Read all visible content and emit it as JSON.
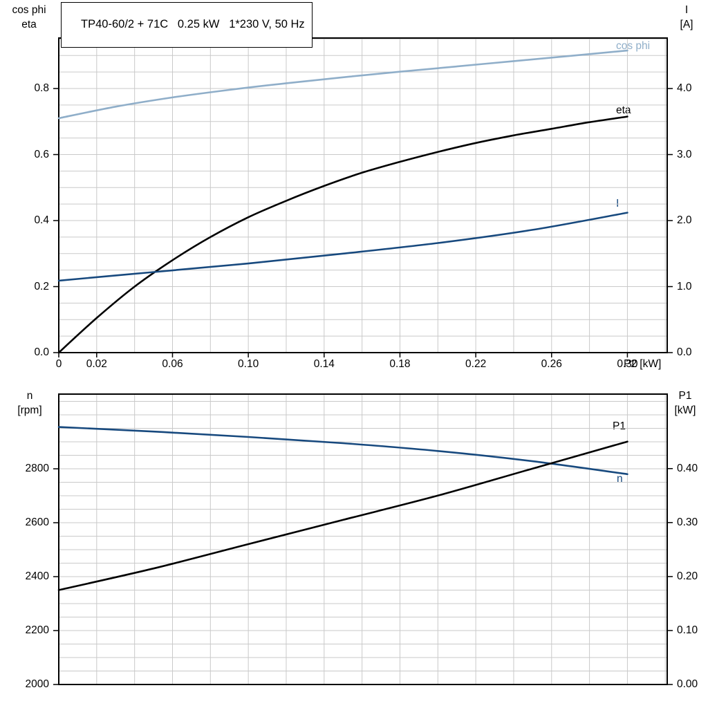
{
  "colors": {
    "light_blue": "#8FAEC9",
    "dark_blue": "#17497E",
    "black": "#000000",
    "grid": "#C9C9C9",
    "frame": "#000000"
  },
  "chart_data": [
    {
      "type": "line",
      "title": "TP40-60/2 + 71C   0.25 kW   1*230 V, 50 Hz",
      "xlabel": "P2 [kW]",
      "xlim": [
        0,
        0.321
      ],
      "x_grid_step": 0.02,
      "x_ticks": [
        {
          "v": 0,
          "label": "0"
        },
        {
          "v": 0.02,
          "label": "0.02"
        },
        {
          "v": 0.06,
          "label": "0.06"
        },
        {
          "v": 0.1,
          "label": "0.10"
        },
        {
          "v": 0.14,
          "label": "0.14"
        },
        {
          "v": 0.18,
          "label": "0.18"
        },
        {
          "v": 0.22,
          "label": "0.22"
        },
        {
          "v": 0.26,
          "label": "0.26"
        },
        {
          "v": 0.3,
          "label": "0.30"
        }
      ],
      "left_axis": {
        "title": [
          "cos phi",
          "eta"
        ],
        "lim": [
          0,
          0.953
        ],
        "grid_step": 0.05,
        "ticks": [
          {
            "v": 0.0,
            "label": "0.0"
          },
          {
            "v": 0.2,
            "label": "0.2"
          },
          {
            "v": 0.4,
            "label": "0.4"
          },
          {
            "v": 0.6,
            "label": "0.6"
          },
          {
            "v": 0.8,
            "label": "0.8"
          }
        ]
      },
      "right_axis": {
        "title": [
          "I",
          "[A]"
        ],
        "lim": [
          0,
          4.765
        ],
        "ticks": [
          {
            "v": 0.0,
            "label": "0.0"
          },
          {
            "v": 1.0,
            "label": "1.0"
          },
          {
            "v": 2.0,
            "label": "2.0"
          },
          {
            "v": 3.0,
            "label": "3.0"
          },
          {
            "v": 4.0,
            "label": "4.0"
          }
        ]
      },
      "series": [
        {
          "name": "cos phi",
          "axis": "left",
          "color": "light_blue",
          "x": [
            0,
            0.03,
            0.06,
            0.09,
            0.12,
            0.15,
            0.18,
            0.21,
            0.24,
            0.27,
            0.3
          ],
          "y": [
            0.71,
            0.745,
            0.773,
            0.796,
            0.816,
            0.834,
            0.851,
            0.867,
            0.883,
            0.899,
            0.915
          ]
        },
        {
          "name": "eta",
          "axis": "left",
          "color": "black",
          "x": [
            0,
            0.02,
            0.04,
            0.06,
            0.08,
            0.1,
            0.12,
            0.14,
            0.16,
            0.18,
            0.2,
            0.22,
            0.24,
            0.26,
            0.28,
            0.3
          ],
          "y": [
            0.0,
            0.105,
            0.2,
            0.28,
            0.35,
            0.41,
            0.46,
            0.505,
            0.545,
            0.578,
            0.608,
            0.635,
            0.658,
            0.678,
            0.698,
            0.715
          ]
        },
        {
          "name": "I",
          "axis": "right",
          "color": "dark_blue",
          "x": [
            0,
            0.05,
            0.1,
            0.15,
            0.2,
            0.25,
            0.3
          ],
          "y": [
            1.09,
            1.22,
            1.35,
            1.5,
            1.66,
            1.86,
            2.12
          ]
        }
      ]
    },
    {
      "type": "line",
      "title": "",
      "xlabel": "",
      "xlim": [
        0,
        0.321
      ],
      "x_grid_step": 0.02,
      "x_ticks": [],
      "left_axis": {
        "title": [
          "n",
          "[rpm]"
        ],
        "lim": [
          2000,
          3077
        ],
        "grid_step": 50,
        "ticks": [
          {
            "v": 2000,
            "label": "2000"
          },
          {
            "v": 2200,
            "label": "2200"
          },
          {
            "v": 2400,
            "label": "2400"
          },
          {
            "v": 2600,
            "label": "2600"
          },
          {
            "v": 2800,
            "label": "2800"
          }
        ]
      },
      "right_axis": {
        "title": [
          "P1",
          "[kW]"
        ],
        "lim": [
          0,
          0.538
        ],
        "ticks": [
          {
            "v": 0.0,
            "label": "0.00"
          },
          {
            "v": 0.1,
            "label": "0.10"
          },
          {
            "v": 0.2,
            "label": "0.20"
          },
          {
            "v": 0.3,
            "label": "0.30"
          },
          {
            "v": 0.4,
            "label": "0.40"
          }
        ]
      },
      "series": [
        {
          "name": "n",
          "axis": "left",
          "color": "dark_blue",
          "x": [
            0,
            0.05,
            0.1,
            0.15,
            0.2,
            0.25,
            0.3
          ],
          "y": [
            2955,
            2938,
            2918,
            2895,
            2866,
            2828,
            2780
          ]
        },
        {
          "name": "P1",
          "axis": "right",
          "color": "black",
          "x": [
            0,
            0.05,
            0.1,
            0.15,
            0.2,
            0.25,
            0.3
          ],
          "y": [
            0.175,
            0.215,
            0.26,
            0.305,
            0.35,
            0.4,
            0.45
          ]
        }
      ]
    }
  ]
}
